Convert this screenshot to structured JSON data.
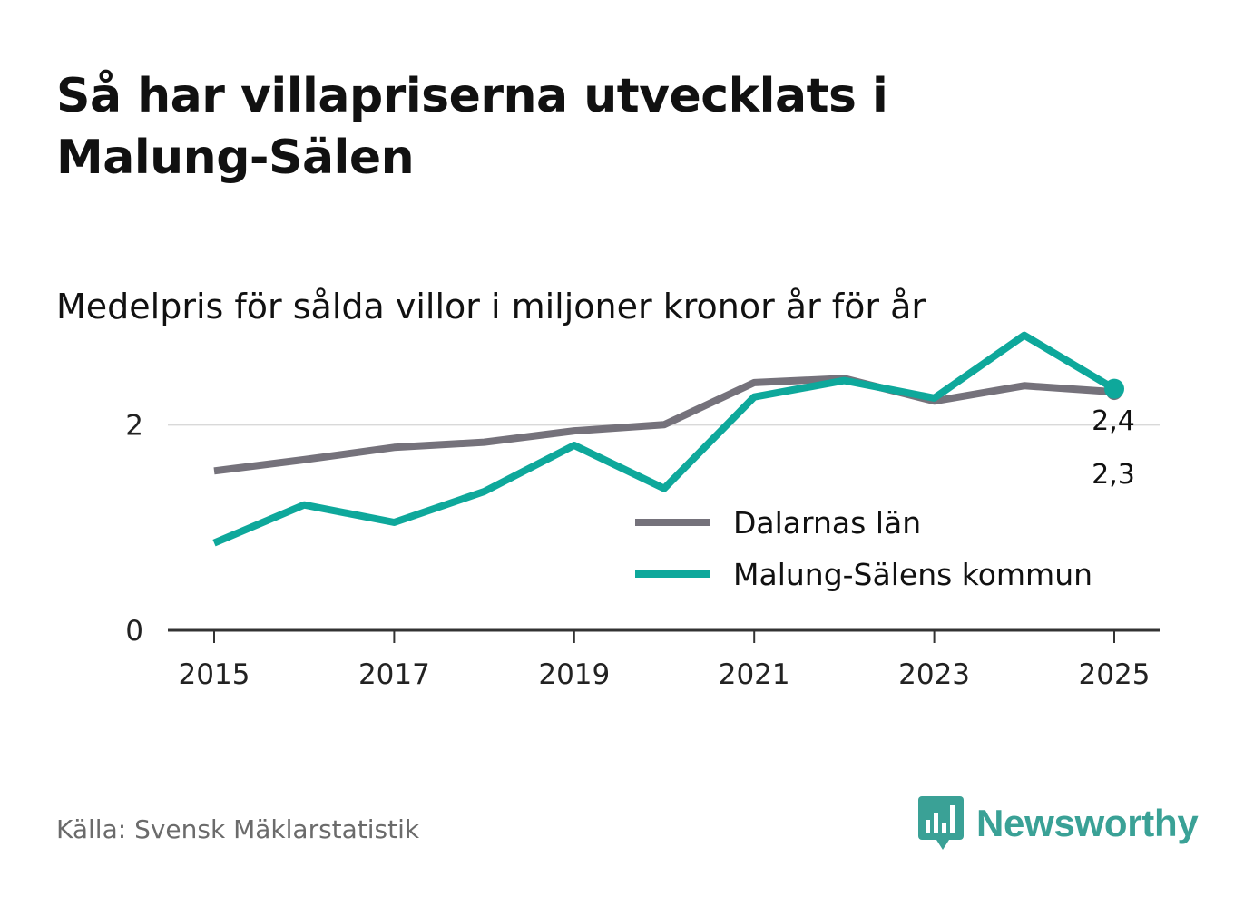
{
  "title": "Så har villapriserna utvecklats i Malung-Sälen",
  "subtitle": "Medelpris för sålda villor i miljoner kronor år för år",
  "source": "Källa: Svensk Mäklarstatistik",
  "brand": {
    "name": "Newsworthy",
    "logo_icon": "bar-chart-speech-bubble-icon"
  },
  "colors": {
    "dalarna": "#75727b",
    "malung": "#0ea89b",
    "grid": "#d9d9d9",
    "axis": "#333333",
    "brand": "#3aa196"
  },
  "chart_data": {
    "type": "line",
    "title": "Så har villapriserna utvecklats i Malung-Sälen",
    "subtitle": "Medelpris för sålda villor i miljoner kronor år för år",
    "xlabel": "",
    "ylabel": "",
    "x": [
      2015,
      2016,
      2017,
      2018,
      2019,
      2020,
      2021,
      2022,
      2023,
      2024,
      2025
    ],
    "xticks": [
      "2015",
      "2017",
      "2019",
      "2021",
      "2023",
      "2025"
    ],
    "yticks": [
      "0",
      "2"
    ],
    "ylim": [
      0,
      3.0
    ],
    "grid": true,
    "legend": "inside-right",
    "series": [
      {
        "name": "Dalarnas län",
        "values": [
          1.55,
          1.66,
          1.78,
          1.83,
          1.94,
          2.0,
          2.41,
          2.45,
          2.23,
          2.38,
          2.32
        ],
        "end_label": "2,3"
      },
      {
        "name": "Malung-Sälens kommun",
        "values": [
          0.85,
          1.22,
          1.05,
          1.35,
          1.8,
          1.38,
          2.27,
          2.43,
          2.26,
          2.87,
          2.35
        ],
        "end_label": "2,4"
      }
    ]
  }
}
